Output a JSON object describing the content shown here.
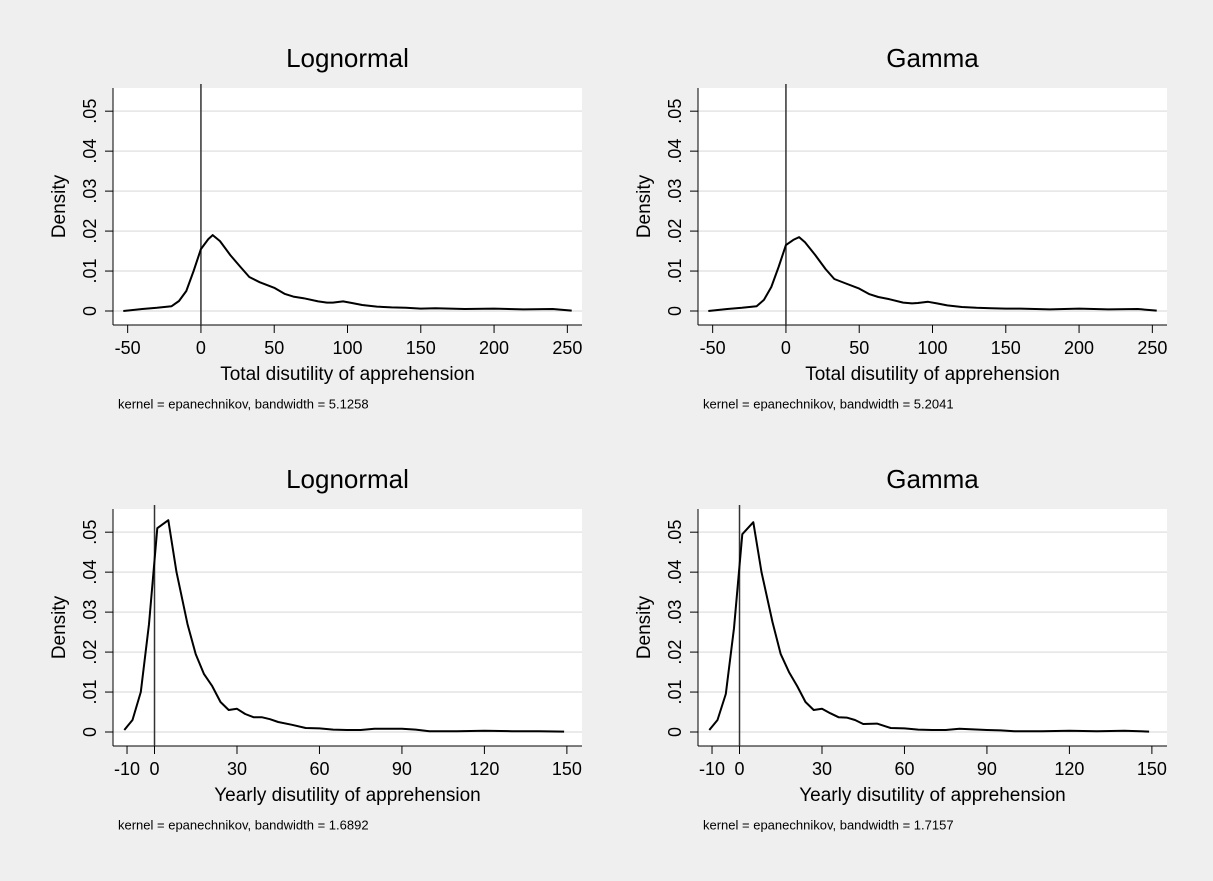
{
  "chart_data": [
    {
      "type": "line",
      "title": "Lognormal",
      "xlabel": "Total disutility of apprehension",
      "ylabel": "Density",
      "note": "kernel = epanechnikov, bandwidth = 5.1258",
      "color": "#000000",
      "grid": true,
      "xline": 0,
      "xlim": [
        -60,
        260
      ],
      "ylim": [
        -0.0035,
        0.0558
      ],
      "xticks": [
        -50,
        0,
        50,
        100,
        150,
        200,
        250
      ],
      "yticks": [
        0,
        {
          "value": 0.01,
          "label": ".01"
        },
        {
          "value": 0.02,
          "label": ".02"
        },
        {
          "value": 0.03,
          "label": ".03"
        },
        {
          "value": 0.04,
          "label": ".04"
        },
        {
          "value": 0.05,
          "label": ".05"
        }
      ],
      "x": [
        -53,
        -40,
        -30,
        -20,
        -15,
        -10,
        -5,
        0,
        5,
        8,
        13,
        20,
        27,
        33,
        40,
        50,
        57,
        63,
        70,
        80,
        86,
        90,
        97,
        103,
        110,
        120,
        130,
        140,
        150,
        160,
        170,
        180,
        200,
        220,
        240,
        253
      ],
      "values": [
        0,
        0.0005,
        0.0008,
        0.0012,
        0.0025,
        0.005,
        0.01,
        0.0155,
        0.018,
        0.019,
        0.0175,
        0.014,
        0.011,
        0.0085,
        0.0072,
        0.0058,
        0.0043,
        0.0036,
        0.0032,
        0.0024,
        0.0021,
        0.0021,
        0.0024,
        0.002,
        0.0015,
        0.0011,
        0.0009,
        0.0008,
        0.0006,
        0.0007,
        0.0006,
        0.0005,
        0.0006,
        0.0004,
        0.0005,
        0.0001
      ]
    },
    {
      "type": "line",
      "title": "Gamma",
      "xlabel": "Total disutility of apprehension",
      "ylabel": "Density",
      "note": "kernel = epanechnikov, bandwidth = 5.2041",
      "color": "#000000",
      "grid": true,
      "xline": 0,
      "xlim": [
        -60,
        260
      ],
      "ylim": [
        -0.0035,
        0.0558
      ],
      "xticks": [
        -50,
        0,
        50,
        100,
        150,
        200,
        250
      ],
      "yticks": [
        0,
        {
          "value": 0.01,
          "label": ".01"
        },
        {
          "value": 0.02,
          "label": ".02"
        },
        {
          "value": 0.03,
          "label": ".03"
        },
        {
          "value": 0.04,
          "label": ".04"
        },
        {
          "value": 0.05,
          "label": ".05"
        }
      ],
      "x": [
        -53,
        -40,
        -30,
        -20,
        -15,
        -10,
        -5,
        0,
        5,
        9,
        13,
        20,
        27,
        33,
        40,
        50,
        57,
        63,
        70,
        80,
        86,
        90,
        97,
        103,
        110,
        120,
        130,
        140,
        150,
        160,
        170,
        180,
        200,
        220,
        240,
        253
      ],
      "values": [
        0,
        0.0005,
        0.0008,
        0.0012,
        0.0028,
        0.006,
        0.011,
        0.0165,
        0.0178,
        0.0185,
        0.0172,
        0.014,
        0.0105,
        0.008,
        0.007,
        0.0056,
        0.0042,
        0.0035,
        0.003,
        0.0021,
        0.0019,
        0.002,
        0.0023,
        0.0019,
        0.0014,
        0.001,
        0.0008,
        0.0007,
        0.0006,
        0.0006,
        0.0005,
        0.0004,
        0.0006,
        0.0004,
        0.0005,
        0.0001
      ]
    },
    {
      "type": "line",
      "title": "Lognormal",
      "xlabel": "Yearly disutility of apprehension",
      "ylabel": "Density",
      "note": "kernel = epanechnikov, bandwidth = 1.6892",
      "color": "#000000",
      "grid": true,
      "xline": 0,
      "xlim": [
        -15.1,
        155.5
      ],
      "ylim": [
        -0.0035,
        0.0558
      ],
      "xticks": [
        -10,
        0,
        30,
        60,
        90,
        120,
        150
      ],
      "yticks": [
        0,
        {
          "value": 0.01,
          "label": ".01"
        },
        {
          "value": 0.02,
          "label": ".02"
        },
        {
          "value": 0.03,
          "label": ".03"
        },
        {
          "value": 0.04,
          "label": ".04"
        },
        {
          "value": 0.05,
          "label": ".05"
        }
      ],
      "x": [
        -11,
        -8,
        -5,
        -2,
        1,
        5,
        8,
        12,
        15,
        18,
        21,
        24,
        27,
        30,
        33,
        36,
        39,
        42,
        45,
        50,
        55,
        60,
        65,
        70,
        75,
        80,
        90,
        95,
        100,
        110,
        120,
        130,
        140,
        149
      ],
      "values": [
        0.0005,
        0.003,
        0.01,
        0.027,
        0.051,
        0.053,
        0.04,
        0.027,
        0.0195,
        0.0145,
        0.0115,
        0.0075,
        0.0055,
        0.0058,
        0.0045,
        0.0037,
        0.0037,
        0.0032,
        0.0025,
        0.0018,
        0.001,
        0.0009,
        0.0006,
        0.0005,
        0.0005,
        0.0008,
        0.0008,
        0.0006,
        0.0002,
        0.0002,
        0.0003,
        0.0002,
        0.0002,
        0.0001
      ]
    },
    {
      "type": "line",
      "title": "Gamma",
      "xlabel": "Yearly disutility of apprehension",
      "ylabel": "Density",
      "note": "kernel = epanechnikov, bandwidth = 1.7157",
      "color": "#000000",
      "grid": true,
      "xline": 0,
      "xlim": [
        -15.1,
        155.5
      ],
      "ylim": [
        -0.0035,
        0.0558
      ],
      "xticks": [
        -10,
        0,
        30,
        60,
        90,
        120,
        150
      ],
      "yticks": [
        0,
        {
          "value": 0.01,
          "label": ".01"
        },
        {
          "value": 0.02,
          "label": ".02"
        },
        {
          "value": 0.03,
          "label": ".03"
        },
        {
          "value": 0.04,
          "label": ".04"
        },
        {
          "value": 0.05,
          "label": ".05"
        }
      ],
      "x": [
        -11,
        -8,
        -5,
        -2,
        1,
        5,
        8,
        12,
        15,
        18,
        21,
        24,
        27,
        30,
        33,
        36,
        39,
        42,
        45,
        50,
        55,
        60,
        65,
        70,
        75,
        80,
        90,
        95,
        100,
        110,
        120,
        130,
        140,
        149
      ],
      "values": [
        0.0005,
        0.003,
        0.0095,
        0.026,
        0.0495,
        0.0525,
        0.04,
        0.0275,
        0.0195,
        0.015,
        0.0115,
        0.0075,
        0.0055,
        0.0058,
        0.0047,
        0.0037,
        0.0036,
        0.003,
        0.002,
        0.0021,
        0.001,
        0.0009,
        0.0006,
        0.0005,
        0.0005,
        0.0008,
        0.0005,
        0.0004,
        0.0002,
        0.0002,
        0.0003,
        0.0002,
        0.0003,
        0.0001
      ]
    }
  ]
}
